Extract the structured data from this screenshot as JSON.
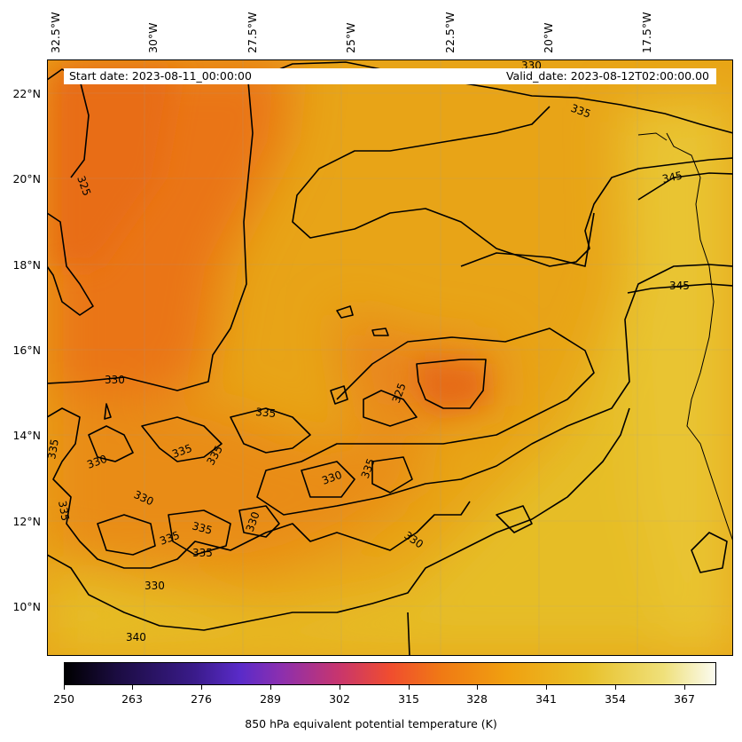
{
  "map": {
    "header": {
      "start_date": "Start date: 2023-08-11_00:00:00",
      "valid_date": "Valid_date: 2023-08-12T02:00:00.00"
    },
    "longitude_labels": [
      "32.5°W",
      "30°W",
      "27.5°W",
      "25°W",
      "22.5°W",
      "20°W",
      "17.5°W"
    ],
    "latitude_labels": [
      "22°N",
      "20°N",
      "18°N",
      "16°N",
      "14°N",
      "12°N",
      "10°N"
    ],
    "contour_labels": [
      "325",
      "330",
      "330",
      "330",
      "330",
      "330",
      "330",
      "330",
      "335",
      "335",
      "335",
      "335",
      "335",
      "335",
      "335",
      "335",
      "335",
      "335",
      "340",
      "345",
      "345",
      "330",
      "325"
    ],
    "colors": {
      "warm": "#ec7a14",
      "mid": "#e9a315",
      "cool": "#e8c52c",
      "contour": "#000000"
    }
  },
  "colorbar": {
    "ticks": [
      "250",
      "263",
      "276",
      "289",
      "302",
      "315",
      "328",
      "341",
      "354",
      "367"
    ],
    "title": "850 hPa equivalent potential temperature (K)",
    "range": [
      250,
      373
    ]
  }
}
